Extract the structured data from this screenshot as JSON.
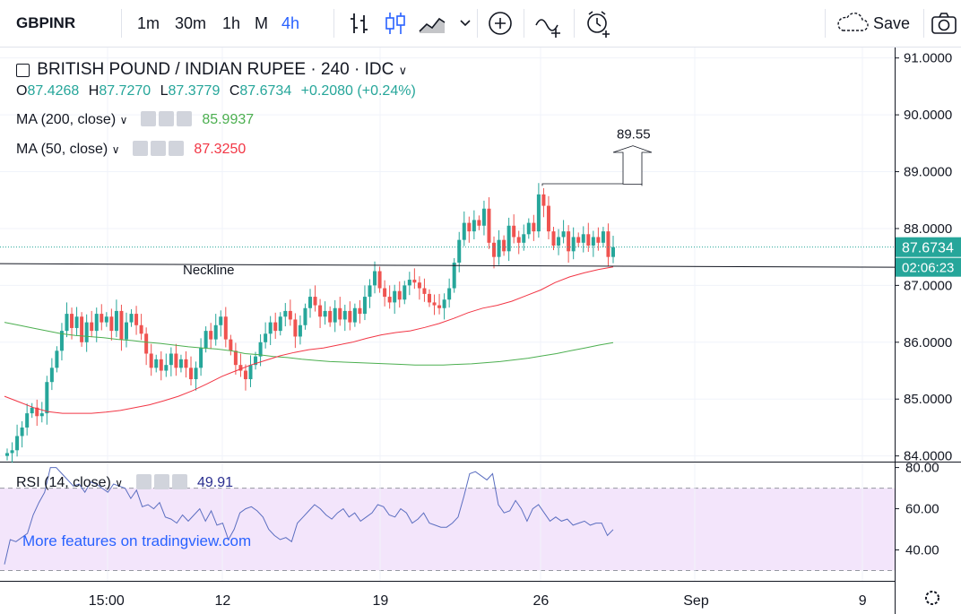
{
  "toolbar": {
    "symbol": "GBPINR",
    "intervals": [
      "1m",
      "30m",
      "1h",
      "M",
      "4h"
    ],
    "active_interval": "4h",
    "save_label": "Save"
  },
  "legend": {
    "title": "BRITISH POUND / INDIAN RUPEE · 240 · IDC",
    "ohlc": {
      "o": "87.4268",
      "h": "87.7270",
      "l": "87.3779",
      "c": "87.6734",
      "change": "+0.2080 (+0.24%)"
    },
    "ma200": {
      "label": "MA (200, close)",
      "value": "85.9937",
      "color": "#4caf50"
    },
    "ma50": {
      "label": "MA (50, close)",
      "value": "87.3250",
      "color": "#f23645"
    },
    "rsi": {
      "label": "RSI (14, close)",
      "value": "49.91",
      "color": "#5b6ec0"
    }
  },
  "promo": "More features on tradingview.com",
  "colors": {
    "up": "#26a69a",
    "down": "#ef5350",
    "rsi_band": "#f3e5fb",
    "last_price_bg": "#26a69a"
  },
  "chart_data": [
    {
      "type": "candlestick",
      "title": "BRITISH POUND / INDIAN RUPEE · 240 · IDC",
      "ylim": [
        83.9,
        91.2
      ],
      "yticks": [
        "91.0000",
        "90.0000",
        "89.0000",
        "88.0000",
        "87.0000",
        "86.0000",
        "85.0000",
        "84.0000"
      ],
      "xticks": [
        "15:00",
        "12",
        "19",
        "26",
        "Sep",
        "9"
      ],
      "last_price": "87.6734",
      "countdown": "02:06:23",
      "annotations": {
        "neckline": {
          "label": "Neckline",
          "value": 87.35
        },
        "target": {
          "label": "89.55",
          "value": 89.55
        }
      },
      "close": [
        84.05,
        84.1,
        84.35,
        84.5,
        84.75,
        84.85,
        84.7,
        84.75,
        85.3,
        85.55,
        85.85,
        86.2,
        86.5,
        86.25,
        86.45,
        86.0,
        86.35,
        86.2,
        86.5,
        86.35,
        86.45,
        86.2,
        86.55,
        86.05,
        86.35,
        86.5,
        86.3,
        86.15,
        85.8,
        85.55,
        85.7,
        85.5,
        85.6,
        85.8,
        85.55,
        85.7,
        85.55,
        85.35,
        85.55,
        85.9,
        86.2,
        86.05,
        86.3,
        86.45,
        86.05,
        85.85,
        85.6,
        85.5,
        85.35,
        85.6,
        85.75,
        86.0,
        86.15,
        86.35,
        86.2,
        86.45,
        86.55,
        86.4,
        86.1,
        86.3,
        86.6,
        86.8,
        86.65,
        86.45,
        86.55,
        86.35,
        86.6,
        86.4,
        86.55,
        86.35,
        86.6,
        86.5,
        86.8,
        87.0,
        87.25,
        86.95,
        86.8,
        86.7,
        86.9,
        86.75,
        87.0,
        87.1,
        87.05,
        86.95,
        86.85,
        86.7,
        86.65,
        86.6,
        86.75,
        86.95,
        87.4,
        87.8,
        88.1,
        87.95,
        88.15,
        88.05,
        88.35,
        87.75,
        87.5,
        87.8,
        87.6,
        88.05,
        87.85,
        87.75,
        87.9,
        88.1,
        87.95,
        88.6,
        88.4,
        87.95,
        87.7,
        87.85,
        87.95,
        87.6,
        87.85,
        87.75,
        87.9,
        87.7,
        87.85,
        87.75,
        87.95,
        87.5,
        87.6734
      ],
      "series": [
        {
          "name": "MA (200, close)",
          "values": [
            86.35,
            86.3,
            86.25,
            86.2,
            86.15,
            86.12,
            86.1,
            86.08,
            86.05,
            86.03,
            86.0,
            85.98,
            85.95,
            85.92,
            85.9,
            85.88,
            85.85,
            85.8,
            85.78,
            85.75,
            85.73,
            85.7,
            85.68,
            85.66,
            85.65,
            85.64,
            85.63,
            85.62,
            85.61,
            85.6,
            85.6,
            85.6,
            85.61,
            85.62,
            85.64,
            85.66,
            85.69,
            85.72,
            85.76,
            85.8,
            85.85,
            85.9,
            85.95,
            85.9937
          ]
        },
        {
          "name": "MA (50, close)",
          "values": [
            85.05,
            84.95,
            84.85,
            84.78,
            84.75,
            84.75,
            84.75,
            84.77,
            84.8,
            84.85,
            84.9,
            84.97,
            85.05,
            85.15,
            85.27,
            85.4,
            85.5,
            85.6,
            85.68,
            85.76,
            85.82,
            85.87,
            85.9,
            85.95,
            86.0,
            86.07,
            86.13,
            86.17,
            86.2,
            86.26,
            86.33,
            86.42,
            86.52,
            86.6,
            86.65,
            86.72,
            86.82,
            86.92,
            87.05,
            87.15,
            87.22,
            87.28,
            87.325
          ]
        },
        {
          "name": "RSI (14, close)",
          "values": [
            33,
            45,
            44,
            46,
            48,
            57,
            63,
            68,
            80,
            80,
            77,
            74,
            71,
            72,
            68,
            73,
            72,
            70,
            68,
            72,
            71,
            70,
            65,
            69,
            61,
            62,
            60,
            63,
            56,
            55,
            53,
            57,
            54,
            57,
            60,
            54,
            59,
            52,
            53,
            45,
            50,
            58,
            60,
            61,
            59,
            56,
            50,
            47,
            45,
            46,
            44,
            53,
            56,
            59,
            62,
            60,
            57,
            55,
            58,
            60,
            56,
            58,
            54,
            56,
            58,
            62,
            61,
            57,
            56,
            60,
            58,
            53,
            55,
            58,
            53,
            52,
            51,
            51,
            53,
            56,
            66,
            77,
            78,
            76,
            74,
            77,
            62,
            58,
            59,
            64,
            60,
            54,
            60,
            62,
            58,
            54,
            56,
            54,
            55,
            52,
            53,
            54,
            52,
            53,
            53,
            47,
            49.91
          ]
        }
      ]
    },
    {
      "type": "line",
      "title": "RSI (14, close)",
      "ylim": [
        25,
        82
      ],
      "yticks": [
        "80.00",
        "60.00",
        "40.00"
      ],
      "bands": [
        30,
        70
      ]
    }
  ]
}
